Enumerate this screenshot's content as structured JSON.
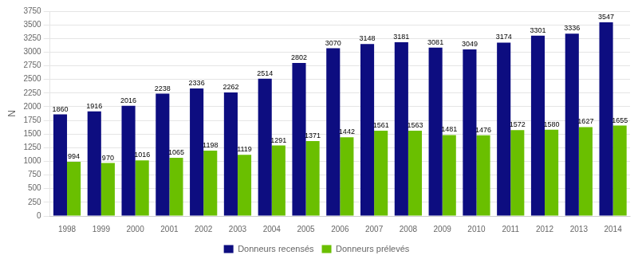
{
  "chart_data": {
    "type": "bar",
    "categories": [
      "1998",
      "1999",
      "2000",
      "2001",
      "2002",
      "2003",
      "2004",
      "2005",
      "2006",
      "2007",
      "2008",
      "2009",
      "2010",
      "2011",
      "2012",
      "2013",
      "2014"
    ],
    "series": [
      {
        "name": "Donneurs recensés",
        "color": "#0d0d80",
        "values": [
          1860,
          1916,
          2016,
          2238,
          2336,
          2262,
          2514,
          2802,
          3070,
          3148,
          3181,
          3081,
          3049,
          3174,
          3301,
          3336,
          3547
        ]
      },
      {
        "name": "Donneurs prélevés",
        "color": "#6abf00",
        "values": [
          994,
          970,
          1016,
          1065,
          1198,
          1119,
          1291,
          1371,
          1442,
          1561,
          1563,
          1481,
          1476,
          1572,
          1580,
          1627,
          1655
        ]
      }
    ],
    "ylabel": "N",
    "ylim": [
      0,
      3750
    ],
    "yticks": [
      0,
      250,
      500,
      750,
      1000,
      1250,
      1500,
      1750,
      2000,
      2250,
      2500,
      2750,
      3000,
      3250,
      3500,
      3750
    ],
    "grid": true,
    "legend": "bottom",
    "data_labels": true
  }
}
